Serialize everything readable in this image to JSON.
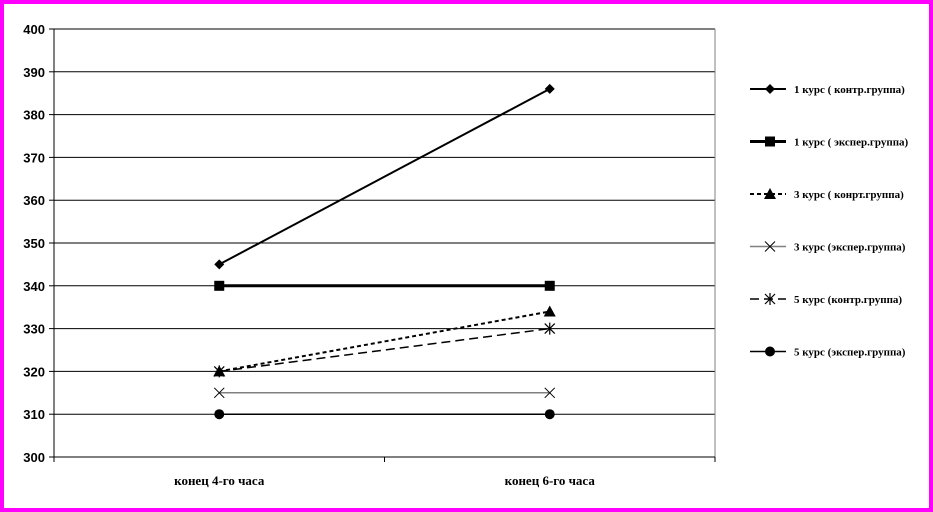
{
  "chart_data": {
    "type": "line",
    "categories": [
      "конец 4-го часа",
      "конец 6-го часа"
    ],
    "ylim": [
      300,
      400
    ],
    "yticks": [
      300,
      310,
      320,
      330,
      340,
      350,
      360,
      370,
      380,
      390,
      400
    ],
    "grid": true,
    "legend_position": "right",
    "series": [
      {
        "name": "1 курс ( контр.группа)",
        "values": [
          345,
          386
        ],
        "color": "#000000",
        "marker": "diamond",
        "dash": "solid",
        "width": 2
      },
      {
        "name": "1 курс ( экспер.группа)",
        "values": [
          340,
          340
        ],
        "color": "#000000",
        "marker": "square",
        "dash": "solid",
        "width": 3
      },
      {
        "name": "3 курс ( конрт.группа)",
        "values": [
          320,
          334
        ],
        "color": "#000000",
        "marker": "triangle",
        "dash": "dotted",
        "width": 2
      },
      {
        "name": "3 курс (экспер.группа)",
        "values": [
          315,
          315
        ],
        "color": "#808080",
        "marker": "x",
        "dash": "solid",
        "width": 1.5
      },
      {
        "name": "5 курс (контр.группа)",
        "values": [
          320,
          330
        ],
        "color": "#000000",
        "marker": "star",
        "dash": "dashed",
        "width": 1.5
      },
      {
        "name": "5 курс (экспер.группа)",
        "values": [
          310,
          310
        ],
        "color": "#000000",
        "marker": "circle",
        "dash": "solid",
        "width": 1.5
      }
    ]
  }
}
